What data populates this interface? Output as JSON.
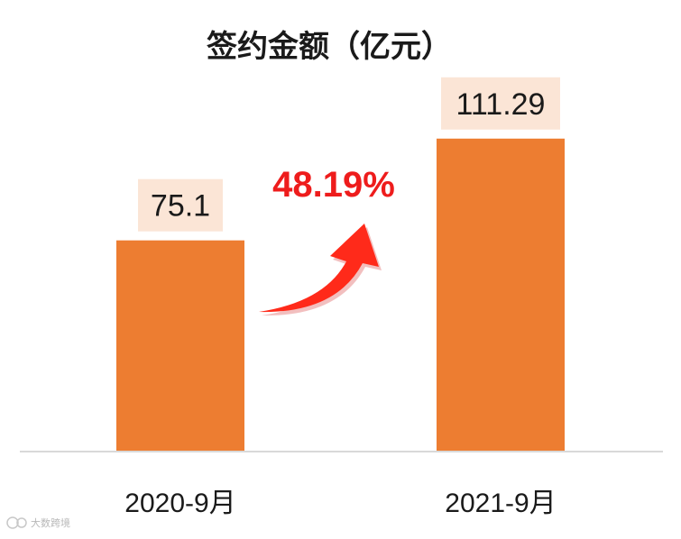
{
  "chart_data": {
    "type": "bar",
    "title": "签约金额（亿元）",
    "categories": [
      "2020-9月",
      "2021-9月"
    ],
    "values": [
      75.1,
      111.29
    ],
    "value_labels": [
      "75.1",
      "111.29"
    ],
    "ylim": [
      0,
      125
    ],
    "grid": false,
    "legend": "none",
    "annotation": {
      "growth_label": "48.19%",
      "arrow": "curved-up-right",
      "color": "#ee1c1c"
    }
  },
  "colors": {
    "bar": "#ed7d31",
    "label_bg": "#fbe5d6",
    "axis": "#d9d9d9",
    "text": "#1a1a1a"
  },
  "watermark": {
    "text": "大数跨境"
  }
}
